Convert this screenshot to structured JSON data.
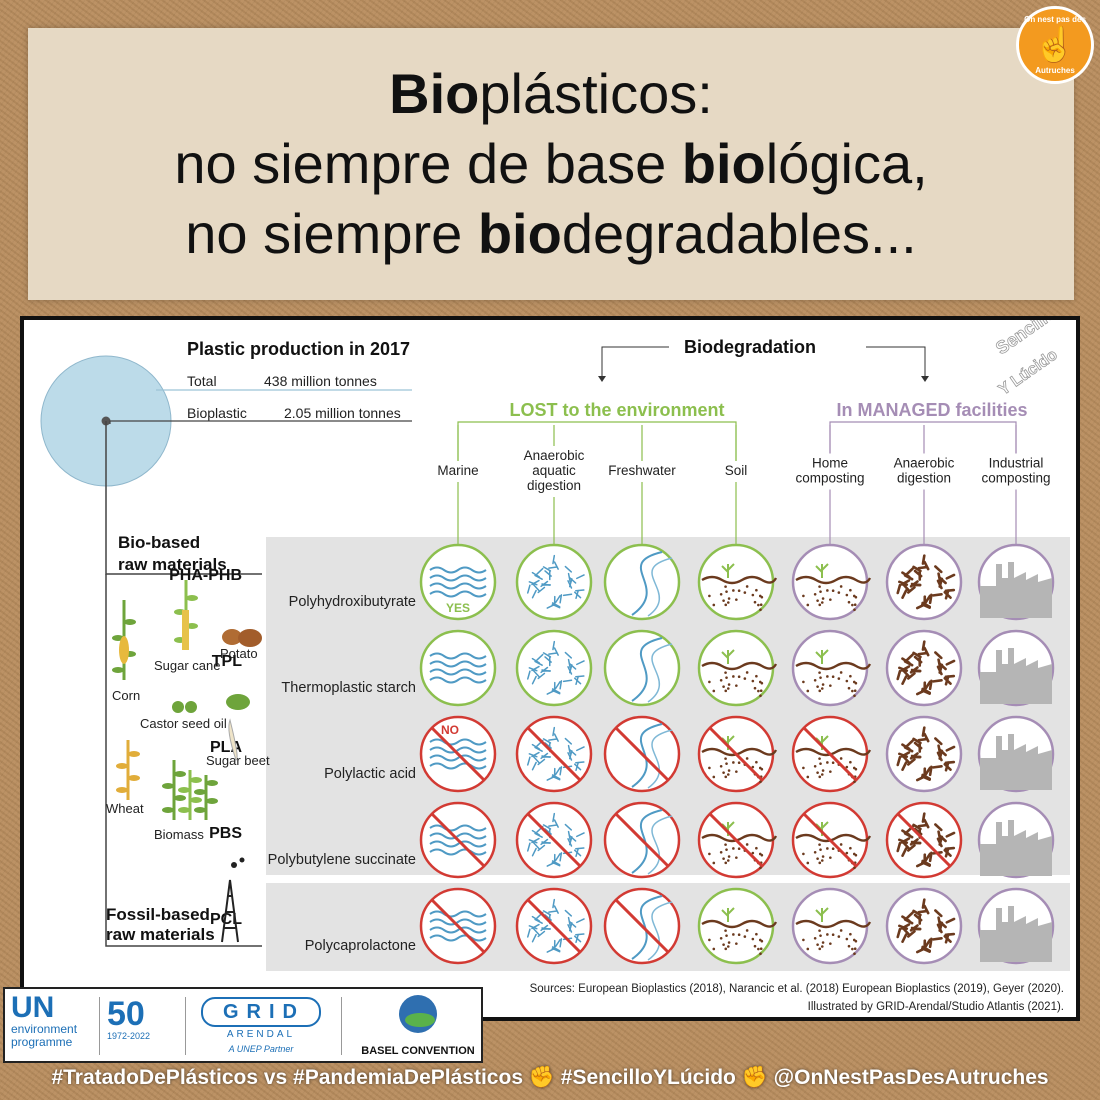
{
  "title": {
    "line1": [
      {
        "t": "Bio",
        "b": true
      },
      {
        "t": "plásticos:",
        "b": false
      }
    ],
    "line2": [
      {
        "t": "no siempre de base ",
        "b": false
      },
      {
        "t": "bio",
        "b": true
      },
      {
        "t": "lógica,",
        "b": false
      }
    ],
    "line3": [
      {
        "t": "no siempre ",
        "b": false
      },
      {
        "t": "bio",
        "b": true
      },
      {
        "t": "degradables...",
        "b": false
      }
    ]
  },
  "badge": {
    "top": "On nest pas des",
    "bottom": "Autruches",
    "hand": "☝"
  },
  "watermark": {
    "line1": "Sencillo",
    "line2": "Y Lúcido"
  },
  "production": {
    "heading": "Plastic production in 2017",
    "total_label": "Total",
    "total_value": "438 million tonnes",
    "bio_label": "Bioplastic",
    "bio_value": "2.05 million tonnes",
    "share_of_total": 0.0047
  },
  "biodegradation_heading": "Biodegradation",
  "lost_heading": "LOST to the environment",
  "managed_heading": "In MANAGED facilities",
  "columns": [
    {
      "label": [
        "Marine"
      ],
      "icon": "waves-icon"
    },
    {
      "label": [
        "Anaerobic",
        "aquatic",
        "digestion"
      ],
      "icon": "anaerobic-particles-icon"
    },
    {
      "label": [
        "Freshwater"
      ],
      "icon": "river-icon"
    },
    {
      "label": [
        "Soil"
      ],
      "icon": "soil-sprout-icon"
    },
    {
      "label": [
        "Home",
        "composting"
      ],
      "icon": "compost-sprout-icon"
    },
    {
      "label": [
        "Anaerobic",
        "digestion"
      ],
      "icon": "digestion-particles-icon"
    },
    {
      "label": [
        "Industrial",
        "composting"
      ],
      "icon": "factory-icon"
    }
  ],
  "bio_based_label": [
    "Bio-based",
    "raw materials"
  ],
  "fossil_based_label": [
    "Fossil-based",
    "raw materials"
  ],
  "raw_materials": [
    "Corn",
    "Sugar cane",
    "Potato",
    "Castor seed oil",
    "Sugar beet",
    "Wheat",
    "Biomass"
  ],
  "materials": [
    {
      "abbr": "PHA-PHB",
      "name": "Polyhydroxibutyrate",
      "degrades": [
        true,
        true,
        true,
        true,
        true,
        true,
        true
      ],
      "tag": "YES"
    },
    {
      "abbr": "TPL",
      "name": "Thermoplastic starch",
      "degrades": [
        true,
        true,
        true,
        true,
        true,
        true,
        true
      ],
      "tag": ""
    },
    {
      "abbr": "PLA",
      "name": "Polylactic acid",
      "degrades": [
        false,
        false,
        false,
        false,
        false,
        true,
        true
      ],
      "tag": "NO"
    },
    {
      "abbr": "PBS",
      "name": "Polybutylene succinate",
      "degrades": [
        false,
        false,
        false,
        false,
        false,
        false,
        true
      ],
      "tag": ""
    },
    {
      "abbr": "PCL",
      "name": "Polycaprolactone",
      "degrades": [
        false,
        false,
        false,
        true,
        true,
        true,
        true
      ],
      "tag": ""
    }
  ],
  "sources": "Sources: European Bioplastics (2018), Narancic et al. (2018) European Bioplastics (2019), Geyer (2020).",
  "credit": "Illustrated by GRID-Arendal/Studio Atlantis (2021).",
  "logos": {
    "un": "UN",
    "unep_line1": "environment",
    "unep_line2": "programme",
    "fifty": "50",
    "years": "1972-2022",
    "grid": "GRID",
    "arendal": "ARENDAL",
    "partner": "A UNEP Partner",
    "basel": "BASEL CONVENTION"
  },
  "footer": "#TratadoDePlásticos vs #PandemiaDePlásticos ✊ #SencilloYLúcido ✊ @OnNestPasDesAutruches",
  "colors": {
    "green": "#8cbf4e",
    "purple": "#a58db5",
    "red": "#d23a33",
    "blue": "#4f9ac4",
    "brown": "#6b3a1e",
    "grey_row": "#e3e3e3",
    "circle": "#bcdbe9"
  }
}
